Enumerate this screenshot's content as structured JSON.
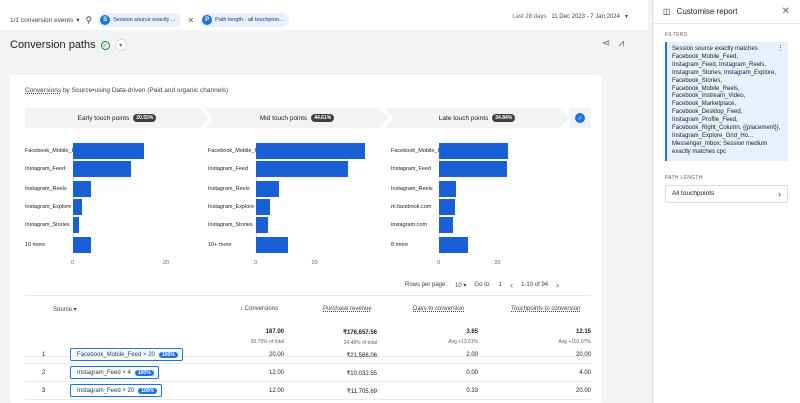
{
  "topbar": {
    "events_label": "1/1 conversion events",
    "chip1_letter": "S",
    "chip1_text": "Session source exactly ...",
    "chip2_letter": "P",
    "chip2_text": "Path length - all touchpoin...",
    "date_prefix": "Last 28 days",
    "date_range": "11 Dec 2023 - 7 Jan 2024"
  },
  "title": "Conversion paths",
  "card": {
    "title_metric": "Conversions",
    "title_rest": " by Source•using Data-driven (Paid and organic channels)"
  },
  "phases": [
    {
      "label": "Early touch points",
      "pct": "20.55%"
    },
    {
      "label": "Mid touch points",
      "pct": "44.61%"
    },
    {
      "label": "Late touch points",
      "pct": "34.84%"
    }
  ],
  "chart_data": {
    "type": "bar",
    "panels": [
      {
        "name": "Early touch points",
        "categories": [
          "Facebook_Mobile_Feed",
          "Instagram_Feed",
          "Instagram_Reels",
          "Instagram_Explore",
          "Instagram_Stories",
          "10 more"
        ],
        "values": [
          15.5,
          12.5,
          4,
          2,
          1.3,
          4
        ],
        "xlim": [
          0,
          25
        ],
        "ticks": [
          "0",
          "20"
        ]
      },
      {
        "name": "Mid touch points",
        "categories": [
          "Facebook_Mobile_Feed",
          "Instagram_Feed",
          "Instagram_Reels",
          "Instagram_Explore",
          "Instagram_Stories",
          "10+ more"
        ],
        "values": [
          38,
          32,
          8,
          5,
          4,
          11
        ],
        "xlim": [
          0,
          40
        ],
        "ticks": [
          "0",
          "20"
        ]
      },
      {
        "name": "Late touch points",
        "categories": [
          "Facebook_Mobile_Feed",
          "Instagram_Feed",
          "Instagram_Reels",
          "m.facebook.com",
          "instagram.com",
          "8 more"
        ],
        "values": [
          24,
          23.5,
          6,
          5.5,
          5,
          10
        ],
        "xlim": [
          0,
          40
        ],
        "ticks": [
          "0",
          "20"
        ]
      }
    ]
  },
  "pager": {
    "rows_label": "Rows per page:",
    "rows_value": "10",
    "goto_label": "Go to:",
    "goto_value": "1",
    "range": "1-10 of 94"
  },
  "table": {
    "headers": [
      "Source",
      "↓ Conversions",
      "Purchase revenue",
      "Days to conversion",
      "Touchpoints to conversion"
    ],
    "totals": [
      {
        "value": "187.00",
        "sub": "30.76% of total"
      },
      {
        "value": "₹176,657.56",
        "sub": "24.48% of total"
      },
      {
        "value": "3.65",
        "sub": "Avg +13.01%"
      },
      {
        "value": "12.15",
        "sub": "Avg +101.67%"
      }
    ],
    "rows": [
      {
        "idx": "1",
        "source": "Facebook_Mobile_Feed × 20",
        "pct": "100%",
        "conversions": "20.00",
        "revenue": "₹21,588.06",
        "days": "2.00",
        "touchpoints": "20.00"
      },
      {
        "idx": "2",
        "source": "Instagram_Feed × 4",
        "pct": "100%",
        "conversions": "12.00",
        "revenue": "₹10,032.55",
        "days": "0.00",
        "touchpoints": "4.00"
      },
      {
        "idx": "3",
        "source": "Instagram_Feed × 20",
        "pct": "100%",
        "conversions": "12.00",
        "revenue": "₹11,705.69",
        "days": "0.33",
        "touchpoints": "20.00"
      }
    ]
  },
  "side": {
    "title": "Customise report",
    "filters_label": "FILTERS",
    "filter_text": "Session source exactly matches Facebook_Mobile_Feed, Instagram_Feed, Instagram_Reels, Instagram_Stories, Instagram_Explore, Facebook_Stories, Facebook_Mobile_Reels, Facebook_Instream_Video, Facebook_Marketplace, Facebook_Desktop_Feed, Instagram_Profile_Feed, Facebook_Right_Column, {{placement}}, Instagram_Explore_Grid_Ho... Messenger_Inbox; Session medium exactly matches cpc",
    "path_length_label": "PATH LENGTH",
    "path_length_value": "All touchpoints"
  }
}
